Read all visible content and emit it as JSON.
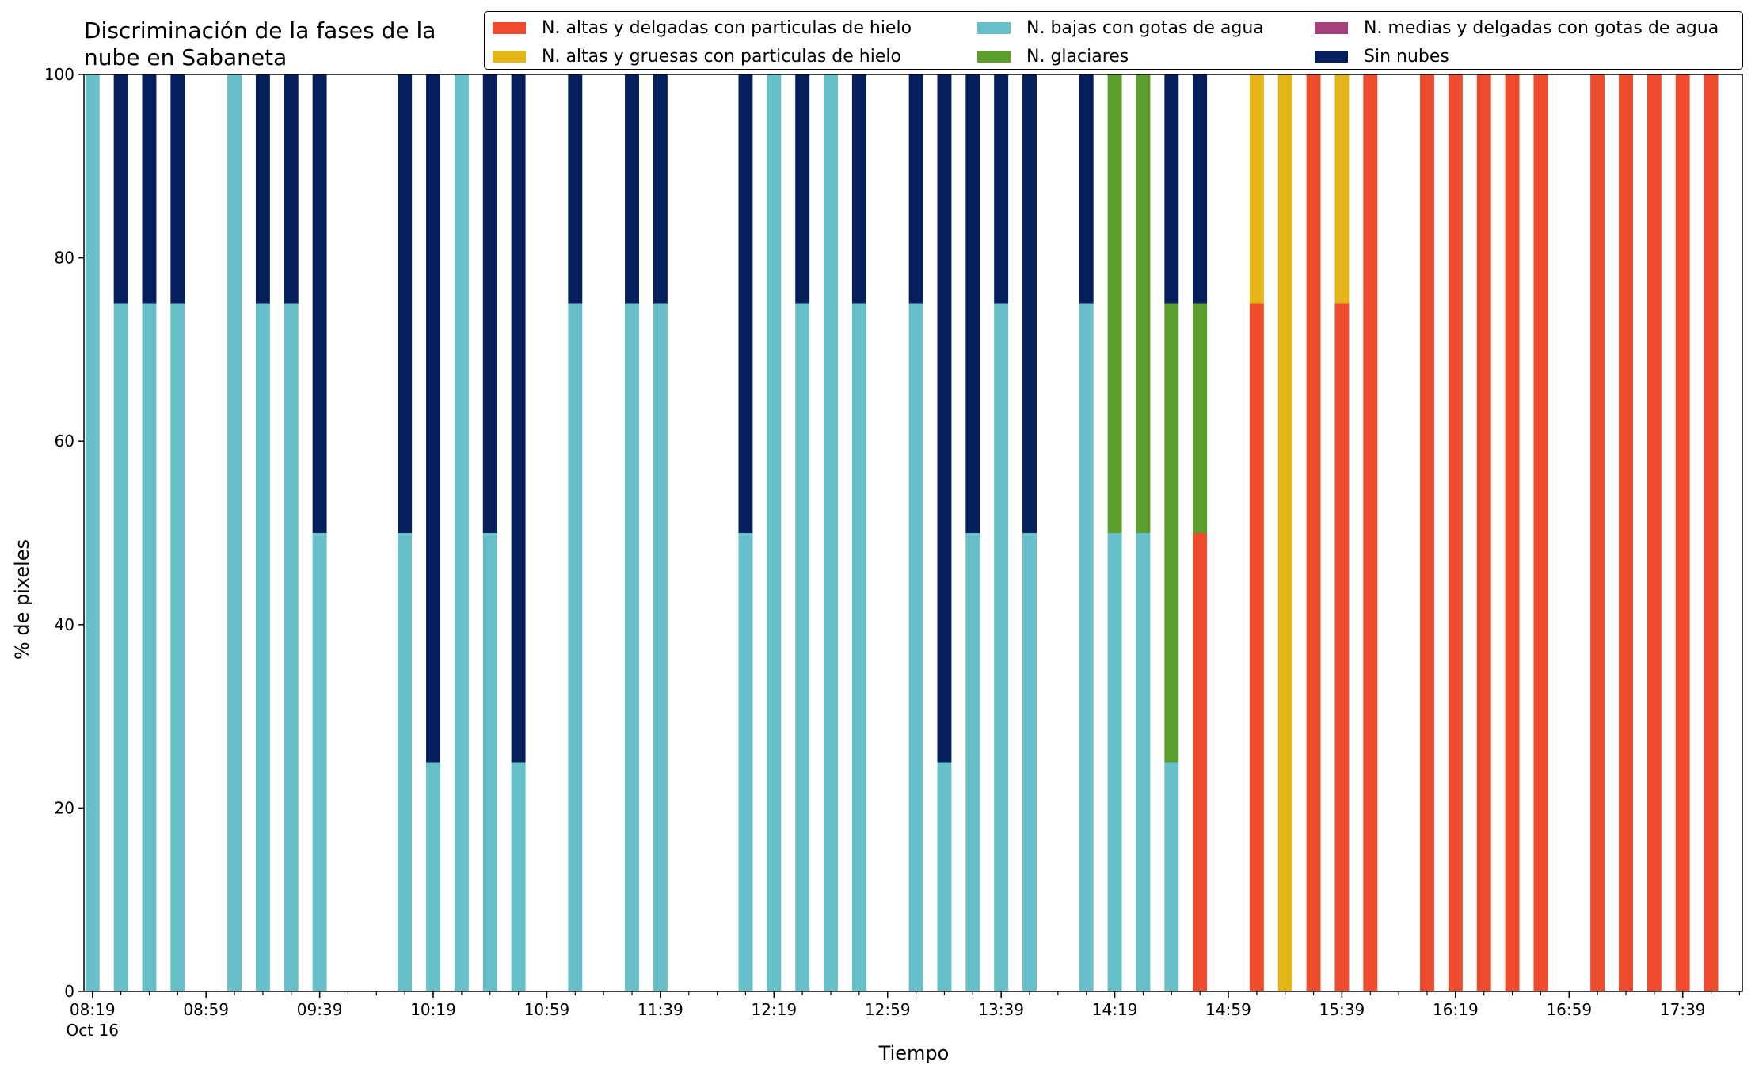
{
  "chart_data": {
    "type": "bar",
    "stacked": true,
    "title": "Discriminación de la fases de la\nnube en Sabaneta",
    "xlabel": "Tiempo",
    "ylabel": "% de pixeles",
    "ylim": [
      0,
      100
    ],
    "yticks": [
      0,
      20,
      40,
      60,
      80,
      100
    ],
    "xlim": [
      "08:16",
      "18:00"
    ],
    "xticks": [
      "08:19",
      "08:59",
      "09:39",
      "10:19",
      "10:59",
      "11:39",
      "12:19",
      "12:59",
      "13:39",
      "14:19",
      "14:59",
      "15:39",
      "16:19",
      "16:59",
      "17:39"
    ],
    "x_first_tick_sublabel": "Oct 16",
    "x_minor_tick_interval_minutes": 10,
    "bar_width_minutes": 5,
    "legend_position": "top-right",
    "grid": false,
    "times": [
      "08:19",
      "08:29",
      "08:39",
      "08:49",
      "09:09",
      "09:19",
      "09:29",
      "09:39",
      "10:09",
      "10:19",
      "10:29",
      "10:39",
      "10:49",
      "11:09",
      "11:29",
      "11:39",
      "12:09",
      "12:19",
      "12:29",
      "12:39",
      "12:49",
      "13:09",
      "13:19",
      "13:29",
      "13:39",
      "13:49",
      "14:09",
      "14:19",
      "14:29",
      "14:39",
      "14:49",
      "15:09",
      "15:19",
      "15:29",
      "15:39",
      "15:49",
      "16:09",
      "16:19",
      "16:29",
      "16:39",
      "16:49",
      "17:09",
      "17:19",
      "17:29",
      "17:39",
      "17:49"
    ],
    "series": [
      {
        "name": "N. altas y delgadas con particulas de hielo",
        "color": "#ee4c2c",
        "values": [
          0,
          0,
          0,
          0,
          0,
          0,
          0,
          0,
          0,
          0,
          0,
          0,
          0,
          0,
          0,
          0,
          0,
          0,
          0,
          0,
          0,
          0,
          0,
          0,
          0,
          0,
          0,
          0,
          0,
          0,
          50,
          75,
          0,
          100,
          75,
          100,
          100,
          100,
          100,
          100,
          100,
          100,
          100,
          100,
          100,
          100
        ]
      },
      {
        "name": "N. altas y gruesas con particulas de hielo",
        "color": "#e3b515",
        "values": [
          0,
          0,
          0,
          0,
          0,
          0,
          0,
          0,
          0,
          0,
          0,
          0,
          0,
          0,
          0,
          0,
          0,
          0,
          0,
          0,
          0,
          0,
          0,
          0,
          0,
          0,
          0,
          0,
          0,
          0,
          0,
          25,
          100,
          0,
          25,
          0,
          0,
          0,
          0,
          0,
          0,
          0,
          0,
          0,
          0,
          0
        ]
      },
      {
        "name": "N. bajas con gotas de agua",
        "color": "#67bfca",
        "values": [
          100,
          75,
          75,
          75,
          100,
          75,
          75,
          50,
          50,
          25,
          100,
          50,
          25,
          75,
          75,
          75,
          50,
          100,
          75,
          100,
          75,
          75,
          25,
          50,
          75,
          50,
          75,
          50,
          50,
          25,
          0,
          0,
          0,
          0,
          0,
          0,
          0,
          0,
          0,
          0,
          0,
          0,
          0,
          0,
          0,
          0
        ]
      },
      {
        "name": "N. glaciares",
        "color": "#5c9e2e",
        "values": [
          0,
          0,
          0,
          0,
          0,
          0,
          0,
          0,
          0,
          0,
          0,
          0,
          0,
          0,
          0,
          0,
          0,
          0,
          0,
          0,
          0,
          0,
          0,
          0,
          0,
          0,
          0,
          50,
          50,
          50,
          25,
          0,
          0,
          0,
          0,
          0,
          0,
          0,
          0,
          0,
          0,
          0,
          0,
          0,
          0,
          0
        ]
      },
      {
        "name": "N. medias y delgadas con gotas de agua",
        "color": "#a4407a",
        "values": [
          0,
          0,
          0,
          0,
          0,
          0,
          0,
          0,
          0,
          0,
          0,
          0,
          0,
          0,
          0,
          0,
          0,
          0,
          0,
          0,
          0,
          0,
          0,
          0,
          0,
          0,
          0,
          0,
          0,
          0,
          0,
          0,
          0,
          0,
          0,
          0,
          0,
          0,
          0,
          0,
          0,
          0,
          0,
          0,
          0,
          0
        ]
      },
      {
        "name": "Sin nubes",
        "color": "#041f5c",
        "values": [
          0,
          25,
          25,
          25,
          0,
          25,
          25,
          50,
          50,
          75,
          0,
          50,
          75,
          25,
          25,
          25,
          50,
          0,
          25,
          0,
          25,
          25,
          75,
          50,
          25,
          50,
          25,
          0,
          0,
          25,
          25,
          0,
          0,
          0,
          0,
          0,
          0,
          0,
          0,
          0,
          0,
          0,
          0,
          0,
          0,
          0
        ]
      }
    ],
    "legend_order": [
      0,
      1,
      2,
      3,
      4,
      5
    ]
  }
}
